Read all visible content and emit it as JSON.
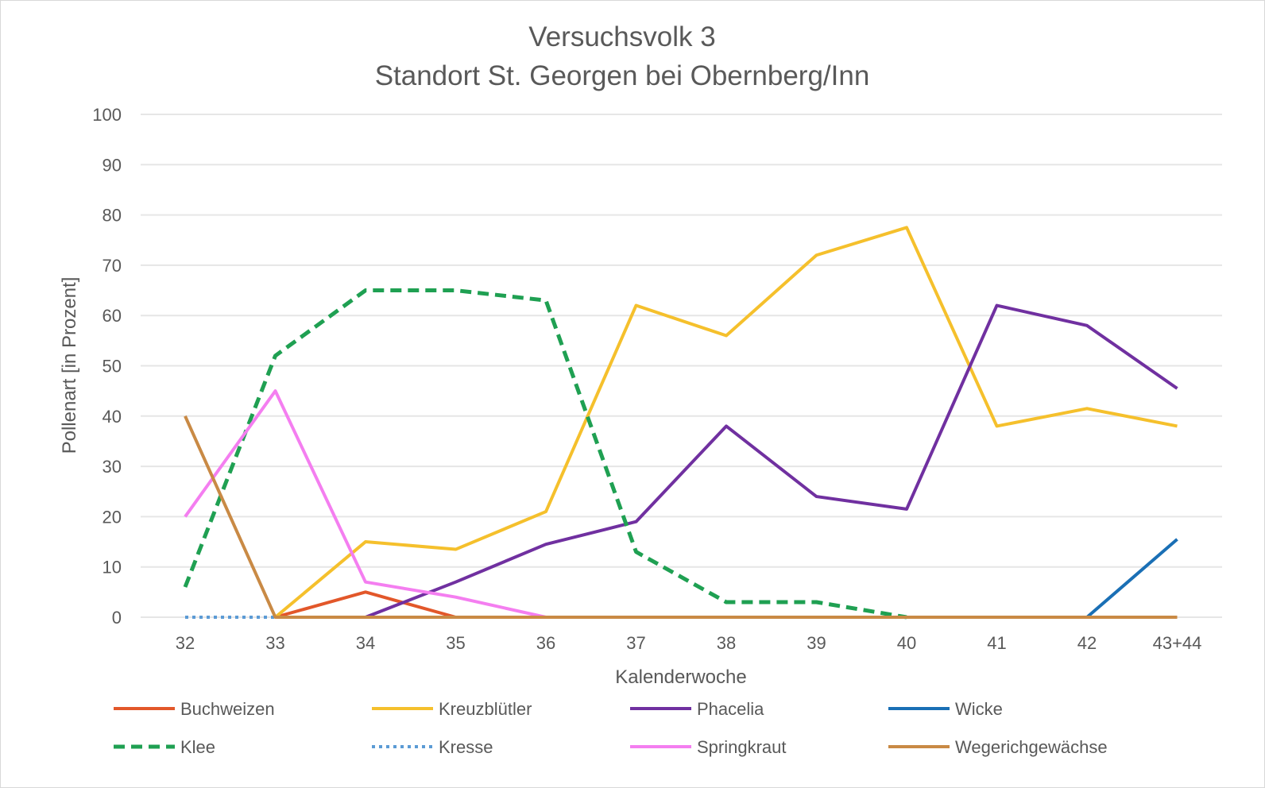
{
  "chart_data": {
    "type": "line",
    "title": [
      "Versuchsvolk 3",
      "Standort St. Georgen bei Obernberg/Inn"
    ],
    "xlabel": "Kalenderwoche",
    "ylabel": "Pollenart [in Prozent]",
    "ylim": [
      0,
      100
    ],
    "yticks": [
      0,
      10,
      20,
      30,
      40,
      50,
      60,
      70,
      80,
      90,
      100
    ],
    "grid": true,
    "legend_position": "bottom",
    "categories": [
      "32",
      "33",
      "34",
      "35",
      "36",
      "37",
      "38",
      "39",
      "40",
      "41",
      "42",
      "43+44"
    ],
    "series": [
      {
        "name": "Buchweizen",
        "color": "#e2572a",
        "dash": "solid",
        "values": [
          null,
          0,
          5,
          0,
          0,
          0,
          0,
          0,
          0,
          0,
          0,
          0
        ]
      },
      {
        "name": "Kreuzblütler",
        "color": "#f5c02c",
        "dash": "solid",
        "values": [
          null,
          0,
          15,
          13.5,
          21,
          62,
          56,
          72,
          77.5,
          38,
          41.5,
          38
        ]
      },
      {
        "name": "Phacelia",
        "color": "#7030a0",
        "dash": "solid",
        "values": [
          null,
          null,
          0,
          7,
          14.5,
          19,
          38,
          24,
          21.5,
          62,
          58,
          45.5
        ]
      },
      {
        "name": "Wicke",
        "color": "#1a6fb5",
        "dash": "solid",
        "values": [
          null,
          null,
          null,
          null,
          null,
          null,
          null,
          null,
          null,
          null,
          0,
          15.5
        ]
      },
      {
        "name": "Klee",
        "color": "#1fa052",
        "dash": "dashed",
        "values": [
          6,
          52,
          65,
          65,
          63,
          13,
          3,
          3,
          0,
          null,
          null,
          null
        ]
      },
      {
        "name": "Kresse",
        "color": "#5b9bd5",
        "dash": "dotted",
        "values": [
          0,
          0,
          null,
          null,
          null,
          null,
          null,
          null,
          null,
          null,
          null,
          null
        ]
      },
      {
        "name": "Springkraut",
        "color": "#f47ef0",
        "dash": "solid",
        "values": [
          20,
          45,
          7,
          4,
          0,
          null,
          null,
          null,
          null,
          null,
          null,
          null
        ]
      },
      {
        "name": "Wegerichgewächse",
        "color": "#c98a45",
        "dash": "solid",
        "values": [
          40,
          0,
          0,
          0,
          0,
          0,
          0,
          0,
          0,
          0,
          0,
          0
        ]
      }
    ]
  }
}
